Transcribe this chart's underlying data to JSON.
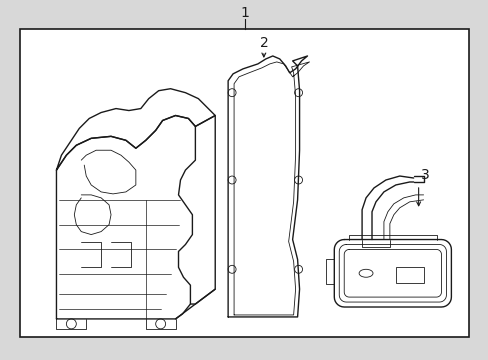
{
  "background_color": "#d8d8d8",
  "box_color": "#ffffff",
  "line_color": "#1a1a1a",
  "title": "1",
  "label2": "2",
  "label3": "3",
  "figsize": [
    4.89,
    3.6
  ],
  "dpi": 100,
  "font_size_labels": 10
}
